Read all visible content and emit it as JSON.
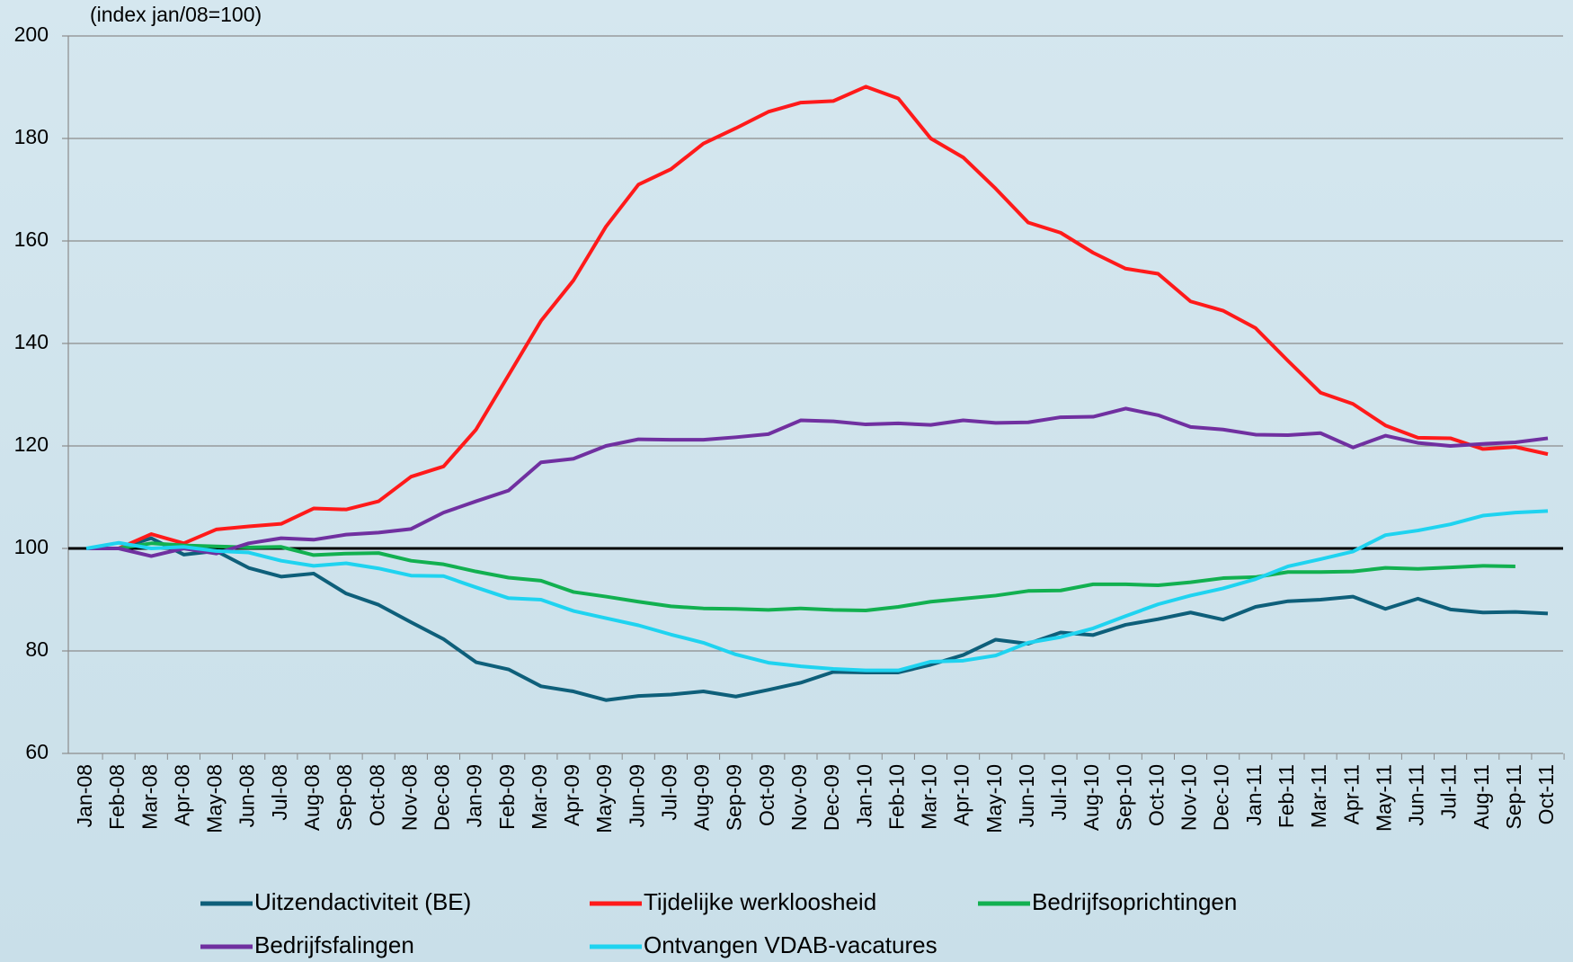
{
  "chart_data": {
    "type": "line",
    "subtitle": "(index jan/08=100)",
    "categories": [
      "Jan-08",
      "Feb-08",
      "Mar-08",
      "Apr-08",
      "May-08",
      "Jun-08",
      "Jul-08",
      "Aug-08",
      "Sep-08",
      "Oct-08",
      "Nov-08",
      "Dec-08",
      "Jan-09",
      "Feb-09",
      "Mar-09",
      "Apr-09",
      "May-09",
      "Jun-09",
      "Jul-09",
      "Aug-09",
      "Sep-09",
      "Oct-09",
      "Nov-09",
      "Dec-09",
      "Jan-10",
      "Feb-10",
      "Mar-10",
      "Apr-10",
      "May-10",
      "Jun-10",
      "Jul-10",
      "Aug-10",
      "Sep-10",
      "Oct-10",
      "Nov-10",
      "Dec-10",
      "Jan-11",
      "Feb-11",
      "Mar-11",
      "Apr-11",
      "May-11",
      "Jun-11",
      "Jul-11",
      "Aug-11",
      "Sep-11",
      "Oct-11"
    ],
    "series": [
      {
        "name": "Uitzendactiviteit (BE)",
        "color": "#0e5f7a",
        "values": [
          100,
          100,
          102,
          98.8,
          99.5,
          96.2,
          94.5,
          95.1,
          91.2,
          89,
          85.6,
          82.3,
          77.8,
          76.4,
          73.1,
          72.1,
          70.4,
          71.2,
          71.5,
          72.1,
          71.1,
          72.4,
          73.8,
          75.9,
          75.8,
          75.8,
          77.3,
          79.2,
          82.2,
          81.4,
          83.6,
          83.1,
          85.1,
          86.2,
          87.5,
          86.1,
          88.6,
          89.7,
          90,
          90.6,
          88.2,
          90.2,
          88.1,
          87.5,
          87.6,
          87.3
        ]
      },
      {
        "name": "Tijdelijke werkloosheid",
        "color": "#ff1a1a",
        "values": [
          100,
          100,
          102.8,
          101,
          103.7,
          104.3,
          104.8,
          107.8,
          107.6,
          109.2,
          114,
          116,
          123.2,
          133.8,
          144.4,
          152.3,
          162.8,
          171,
          174,
          179,
          182,
          185.2,
          187,
          187.3,
          190.1,
          187.8,
          180,
          176.3,
          170.2,
          163.6,
          161.6,
          157.7,
          154.6,
          153.6,
          148.2,
          146.4,
          143,
          136.6,
          130.4,
          128.2,
          124,
          121.6,
          121.5,
          119.4,
          119.8,
          118.4
        ]
      },
      {
        "name": "Bedrijfsoprichtingen",
        "color": "#12b050",
        "values": [
          100,
          100,
          101,
          100.6,
          100.4,
          100.2,
          100.3,
          98.7,
          99,
          99.1,
          97.6,
          96.9,
          95.5,
          94.3,
          93.7,
          91.5,
          90.6,
          89.6,
          88.7,
          88.3,
          88.2,
          88,
          88.3,
          88,
          87.9,
          88.6,
          89.6,
          90.2,
          90.8,
          91.7,
          91.8,
          93,
          93,
          92.8,
          93.4,
          94.2,
          94.4,
          95.4,
          95.4,
          95.5,
          96.2,
          96,
          96.3,
          96.6,
          96.5,
          null
        ]
      },
      {
        "name": "Bedrijfsfalingen",
        "color": "#7030a0",
        "values": [
          100,
          100,
          98.5,
          100,
          99,
          101,
          102,
          101.7,
          102.7,
          103.1,
          103.8,
          107,
          109.2,
          111.3,
          116.8,
          117.5,
          120,
          121.3,
          121.2,
          121.2,
          121.7,
          122.3,
          125,
          124.8,
          124.2,
          124.4,
          124.1,
          125,
          124.5,
          124.6,
          125.6,
          125.7,
          127.3,
          126,
          123.7,
          123.2,
          122.2,
          122.1,
          122.5,
          119.7,
          122,
          120.6,
          120,
          120.4,
          120.7,
          121.5
        ]
      },
      {
        "name": "Ontvangen VDAB-vacatures",
        "color": "#1fd3f0",
        "values": [
          100,
          101.1,
          100,
          100.3,
          99.5,
          99.2,
          97.6,
          96.6,
          97.1,
          96.1,
          94.7,
          94.6,
          92.4,
          90.3,
          90,
          87.8,
          86.4,
          85,
          83.2,
          81.6,
          79.3,
          77.7,
          77,
          76.5,
          76.2,
          76.2,
          77.9,
          78.1,
          79.1,
          81.6,
          82.7,
          84.4,
          86.8,
          89.1,
          90.8,
          92.2,
          94,
          96.5,
          97.9,
          99.4,
          102.6,
          103.5,
          104.7,
          106.4,
          107,
          107.3
        ]
      }
    ],
    "ylim": [
      60,
      200
    ],
    "yticks": [
      60,
      80,
      100,
      120,
      140,
      160,
      180,
      200
    ],
    "reference_line": 100,
    "grid": true,
    "legend": "bottom"
  }
}
